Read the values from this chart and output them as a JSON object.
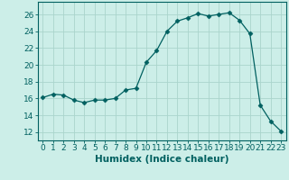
{
  "x": [
    0,
    1,
    2,
    3,
    4,
    5,
    6,
    7,
    8,
    9,
    10,
    11,
    12,
    13,
    14,
    15,
    16,
    17,
    18,
    19,
    20,
    21,
    22,
    23
  ],
  "y": [
    16.1,
    16.5,
    16.4,
    15.8,
    15.5,
    15.8,
    15.8,
    16.0,
    17.0,
    17.2,
    20.3,
    21.7,
    24.0,
    25.2,
    25.6,
    26.1,
    25.8,
    26.0,
    26.2,
    25.3,
    23.7,
    15.2,
    13.3,
    12.1
  ],
  "line_color": "#006060",
  "marker": "D",
  "markersize": 2.5,
  "bg_color": "#cceee8",
  "grid_color": "#aad4cc",
  "xlabel": "Humidex (Indice chaleur)",
  "xlim": [
    -0.5,
    23.5
  ],
  "ylim": [
    11,
    27.5
  ],
  "yticks": [
    12,
    14,
    16,
    18,
    20,
    22,
    24,
    26
  ],
  "xticks": [
    0,
    1,
    2,
    3,
    4,
    5,
    6,
    7,
    8,
    9,
    10,
    11,
    12,
    13,
    14,
    15,
    16,
    17,
    18,
    19,
    20,
    21,
    22,
    23
  ],
  "xlabel_fontsize": 7.5,
  "tick_fontsize": 6.5
}
